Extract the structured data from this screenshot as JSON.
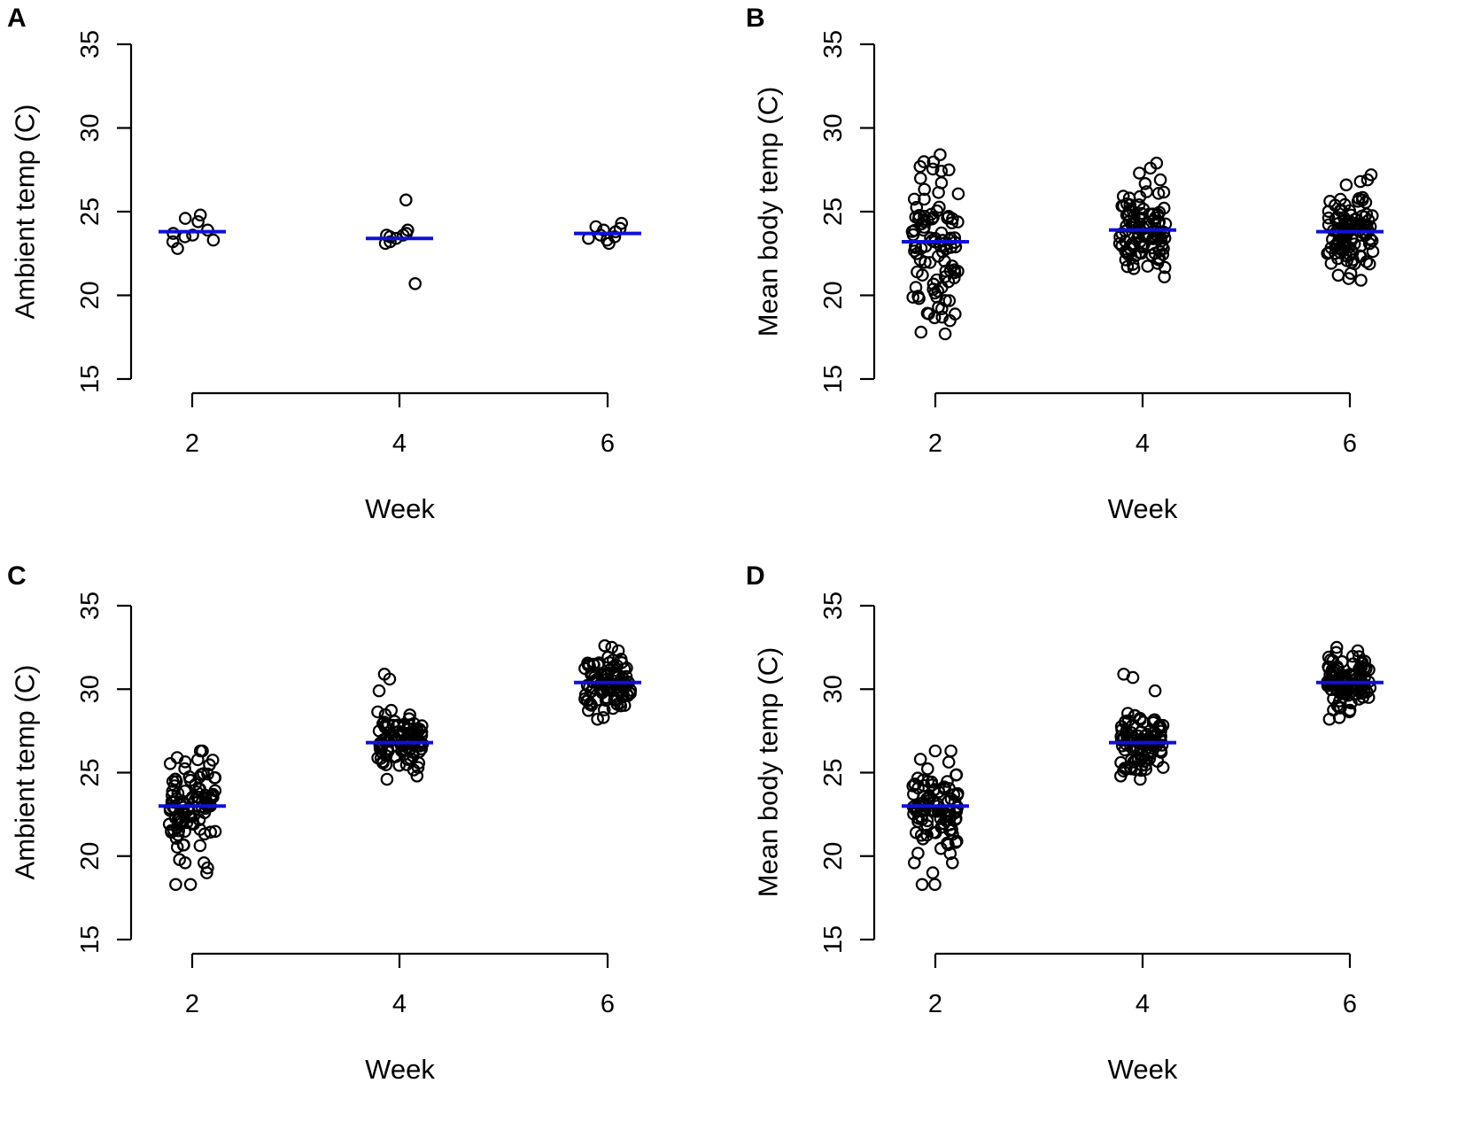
{
  "colors": {
    "mean_line": "#1010d8",
    "points": "#000000",
    "axes": "#000000"
  },
  "chart_data": [
    {
      "panel": "A",
      "type": "scatter",
      "xlabel": "Week",
      "ylabel": "Ambient temp (C)",
      "categories": [
        "2",
        "4",
        "6"
      ],
      "ylim": [
        15,
        35
      ],
      "yticks": [
        "15",
        "20",
        "25",
        "30",
        "35"
      ],
      "grid": false,
      "means": [
        23.8,
        23.4,
        23.7
      ],
      "series": [
        {
          "week": "2",
          "values": [
            24.4,
            24.6,
            23.9,
            23.7,
            23.6,
            23.3,
            23.5,
            24.8,
            23.2,
            22.8
          ]
        },
        {
          "week": "4",
          "values": [
            25.7,
            23.9,
            23.6,
            23.4,
            23.1,
            23.7,
            23.5,
            23.6,
            20.7,
            23.2
          ]
        },
        {
          "week": "6",
          "values": [
            23.5,
            23.4,
            23.1,
            24.0,
            24.3,
            23.6,
            24.1,
            23.3,
            23.8,
            23.9
          ]
        }
      ]
    },
    {
      "panel": "B",
      "type": "scatter",
      "xlabel": "Week",
      "ylabel": "Mean body temp (C)",
      "categories": [
        "2",
        "4",
        "6"
      ],
      "ylim": [
        15,
        35
      ],
      "yticks": [
        "15",
        "20",
        "25",
        "30",
        "35"
      ],
      "grid": false,
      "means": [
        23.2,
        23.9,
        23.8
      ],
      "groups": [
        {
          "week": "2",
          "count": 100,
          "min": 17.7,
          "max": 28.4,
          "sd": 2.1,
          "extremes": [
            28.4,
            27.7,
            27.5,
            17.7,
            17.8,
            18.7,
            19.2,
            18.9
          ]
        },
        {
          "week": "4",
          "count": 100,
          "min": 21.1,
          "max": 27.9,
          "sd": 1.2,
          "extremes": [
            27.9,
            27.6,
            27.3,
            26.9,
            21.1,
            21.6
          ]
        },
        {
          "week": "6",
          "count": 100,
          "min": 20.9,
          "max": 27.2,
          "sd": 1.2,
          "extremes": [
            27.2,
            26.9,
            26.8,
            26.6,
            20.9,
            21.0,
            21.2
          ]
        }
      ]
    },
    {
      "panel": "C",
      "type": "scatter",
      "xlabel": "Week",
      "ylabel": "Ambient temp (C)",
      "categories": [
        "2",
        "4",
        "6"
      ],
      "ylim": [
        15,
        35
      ],
      "yticks": [
        "15",
        "20",
        "25",
        "30",
        "35"
      ],
      "grid": false,
      "means": [
        23.0,
        26.8,
        30.4
      ],
      "groups": [
        {
          "week": "2",
          "count": 100,
          "min": 18.3,
          "max": 26.3,
          "sd": 1.4,
          "extremes": [
            26.3,
            26.3,
            25.9,
            18.3,
            18.3,
            19.0,
            19.6,
            19.6
          ]
        },
        {
          "week": "4",
          "count": 100,
          "min": 24.6,
          "max": 30.9,
          "sd": 1.0,
          "extremes": [
            30.9,
            30.6,
            29.9,
            24.6,
            24.8
          ]
        },
        {
          "week": "6",
          "count": 100,
          "min": 28.2,
          "max": 32.6,
          "sd": 0.9,
          "extremes": [
            32.6,
            32.5,
            32.3,
            28.2,
            28.3
          ]
        }
      ]
    },
    {
      "panel": "D",
      "type": "scatter",
      "xlabel": "Week",
      "ylabel": "Mean body temp (C)",
      "categories": [
        "2",
        "4",
        "6"
      ],
      "ylim": [
        15,
        35
      ],
      "yticks": [
        "15",
        "20",
        "25",
        "30",
        "35"
      ],
      "grid": false,
      "means": [
        23.0,
        26.8,
        30.4
      ],
      "groups": [
        {
          "week": "2",
          "count": 100,
          "min": 18.3,
          "max": 26.3,
          "sd": 1.4,
          "extremes": [
            26.3,
            26.3,
            25.8,
            18.3,
            18.3,
            19.0,
            19.6,
            19.6
          ]
        },
        {
          "week": "4",
          "count": 100,
          "min": 24.6,
          "max": 30.9,
          "sd": 1.0,
          "extremes": [
            30.9,
            30.7,
            29.9,
            24.6,
            24.8
          ]
        },
        {
          "week": "6",
          "count": 100,
          "min": 28.2,
          "max": 32.5,
          "sd": 0.9,
          "extremes": [
            32.5,
            32.3,
            32.2,
            28.2,
            28.3
          ]
        }
      ]
    }
  ]
}
